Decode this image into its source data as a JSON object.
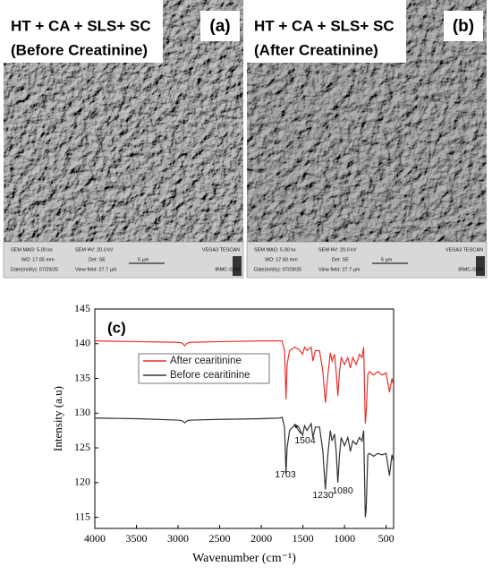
{
  "panels": [
    {
      "label": "(a)",
      "title": [
        "HT + CA + SLS+ SC",
        "(Before Creatinine)"
      ],
      "info": [
        "SEM MAG: 5.00 kx",
        "SEM HV: 20.0 kV",
        "VEGA3 TESCAN",
        "WD: 17.65 mm",
        "Det: SE",
        "5 µm",
        "Date(m/d/y): 07/29/25",
        "View field: 27.7 µm",
        "IRMC-SEM"
      ]
    },
    {
      "label": "(b)",
      "title": [
        "HT + CA + SLS+ SC",
        "(After Creatinine)"
      ],
      "info": [
        "SEM MAG: 5.00 kx",
        "SEM HV: 20.0 kV",
        "VEGA3 TESCAN",
        "WD: 17.60 mm",
        "Det: SE",
        "5 µm",
        "Date(m/d/y): 07/29/25",
        "View field: 27.7 µm",
        "IRMC-SEM"
      ]
    }
  ],
  "chart_data": {
    "type": "line",
    "panel_label": "(c)",
    "xlabel": "Wavenumber (cm⁻¹)",
    "ylabel": "Intensity (a.u)",
    "xlim": [
      4000,
      410
    ],
    "ylim": [
      113.4,
      145
    ],
    "xticks": [
      4000,
      3500,
      3000,
      2500,
      2000,
      1500,
      1000,
      500
    ],
    "yticks": [
      115,
      120,
      125,
      130,
      135,
      140,
      145
    ],
    "legend": "upper left",
    "annotations": [
      "1703",
      "1504",
      "1230",
      "1080"
    ],
    "x": [
      4000,
      3500,
      3000,
      2950,
      2920,
      2890,
      2850,
      2500,
      2000,
      1780,
      1750,
      1720,
      1703,
      1690,
      1660,
      1600,
      1550,
      1504,
      1480,
      1450,
      1400,
      1380,
      1350,
      1300,
      1260,
      1230,
      1200,
      1170,
      1150,
      1120,
      1100,
      1080,
      1060,
      1040,
      1000,
      960,
      930,
      900,
      860,
      820,
      790,
      770,
      750,
      740,
      720,
      700,
      650,
      600,
      550,
      500,
      460,
      430,
      410
    ],
    "series": [
      {
        "name": "After cearitinine",
        "color": "#e8312f",
        "values": [
          140.4,
          140.3,
          140.2,
          140.1,
          139.7,
          140.1,
          140.2,
          140.3,
          140.4,
          140.4,
          140.4,
          139,
          132,
          137,
          139,
          139.5,
          139.2,
          138.5,
          139.5,
          139,
          139.5,
          137.5,
          139,
          139,
          136,
          131.5,
          135.5,
          138.7,
          137.5,
          138.5,
          136,
          132.5,
          136,
          138,
          137,
          138,
          136.5,
          138,
          137,
          138.5,
          138,
          139.5,
          128.5,
          130,
          135.5,
          136,
          135.5,
          136,
          135.5,
          135.8,
          133,
          135,
          134
        ]
      },
      {
        "name": "Before cearitinine",
        "color": "#333333",
        "values": [
          129.3,
          129.2,
          129,
          128.9,
          128.6,
          128.9,
          129,
          129.1,
          129.2,
          129.3,
          129.4,
          128,
          121.3,
          125,
          127.5,
          128.3,
          128,
          126.8,
          128.2,
          127.5,
          128.5,
          126.5,
          128,
          128,
          124.5,
          119,
          124,
          127.5,
          126,
          127,
          124.5,
          120,
          124,
          126.5,
          125.3,
          126.5,
          124.5,
          126,
          125.5,
          126.5,
          126,
          127.5,
          115,
          116,
          124,
          124.2,
          123.8,
          124.2,
          124,
          124.2,
          121,
          124,
          123
        ]
      }
    ]
  }
}
